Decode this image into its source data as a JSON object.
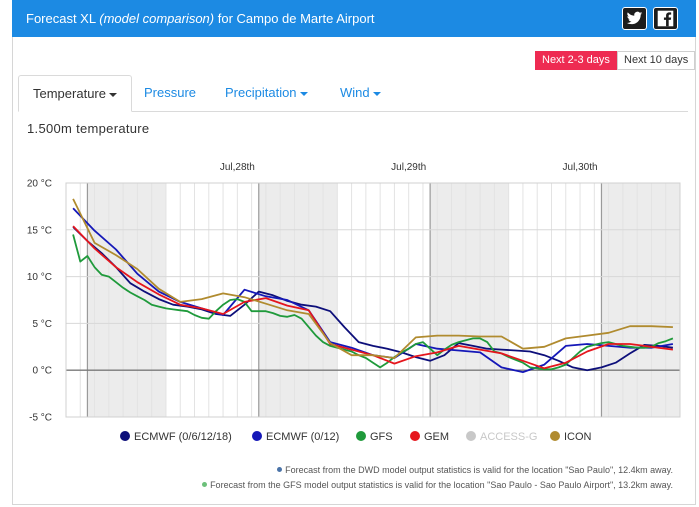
{
  "header": {
    "title_prefix": "Forecast XL",
    "title_em": "(model comparison)",
    "title_suffix": "for Campo de Marte Airport",
    "bg": "#1c8ae3"
  },
  "social": {
    "twitter_icon": "twitter-icon",
    "facebook_icon": "facebook-icon"
  },
  "range": {
    "short_label": "Next 2-3 days",
    "long_label": "Next 10 days"
  },
  "tabs": [
    {
      "label": "Temperature",
      "active": true
    },
    {
      "label": "Pressure",
      "active": false
    },
    {
      "label": "Precipitation",
      "active": false
    },
    {
      "label": "Wind",
      "active": false
    }
  ],
  "subtitle": "1.500m temperature",
  "chart_data": {
    "type": "line",
    "x_unit": "hour",
    "day_labels": [
      {
        "label": "Jul,28th",
        "hour": 24
      },
      {
        "label": "Jul,29th",
        "hour": 48
      },
      {
        "label": "Jul,30th",
        "hour": 72
      }
    ],
    "y_ticks": [
      "20 °C",
      "15 °C",
      "10 °C",
      "5 °C",
      "0 °C",
      "-5 °C"
    ],
    "y_tick_values": [
      20,
      15,
      10,
      5,
      0,
      -5
    ],
    "ylim": [
      -5,
      20
    ],
    "xlim": [
      0,
      86
    ],
    "zero_line": true,
    "grid": true,
    "series": [
      {
        "name": "ECMWF (0/6/12/18)",
        "color": "#0d0f7a",
        "x": [
          1,
          3,
          5,
          7,
          9,
          11,
          13,
          15,
          17,
          19,
          21,
          23,
          25,
          27,
          29,
          31,
          33,
          35,
          37,
          39,
          41,
          43,
          45,
          47,
          49,
          51,
          53,
          55,
          57,
          59,
          61,
          63,
          65,
          67,
          69,
          71,
          73,
          75,
          77,
          79,
          81,
          83,
          85
        ],
        "y": [
          15.3,
          13.8,
          12.5,
          11.0,
          9.3,
          8.4,
          7.6,
          7.0,
          6.8,
          6.5,
          6.0,
          5.8,
          7.0,
          8.4,
          8.0,
          7.4,
          7.0,
          6.8,
          6.3,
          4.6,
          3.0,
          2.6,
          2.3,
          1.9,
          1.4,
          1.0,
          1.6,
          2.9,
          2.6,
          2.3,
          2.2,
          2.1,
          2.0,
          1.6,
          1.0,
          0.3,
          0.0,
          0.3,
          0.8,
          1.8,
          2.7,
          2.6,
          2.4
        ]
      },
      {
        "name": "ECMWF (0/12)",
        "color": "#1518b8",
        "x": [
          1,
          4,
          7,
          10,
          13,
          16,
          19,
          22,
          25,
          28,
          31,
          34,
          37,
          40,
          43,
          46,
          49,
          52,
          55,
          58,
          61,
          64,
          67,
          70,
          73,
          76,
          79,
          82,
          85
        ],
        "y": [
          17.3,
          14.9,
          12.9,
          10.3,
          8.4,
          7.3,
          6.6,
          5.9,
          8.6,
          7.9,
          7.5,
          6.4,
          3.0,
          2.4,
          1.6,
          1.3,
          2.8,
          2.3,
          2.1,
          1.9,
          0.3,
          -0.2,
          0.6,
          2.6,
          2.8,
          2.6,
          2.4,
          2.4,
          2.8
        ]
      },
      {
        "name": "GFS",
        "color": "#1f9a3b",
        "x": [
          1,
          2,
          3,
          4,
          5,
          6,
          7,
          8,
          9,
          10,
          11,
          12,
          13,
          14,
          15,
          16,
          17,
          18,
          19,
          20,
          21,
          22,
          23,
          24,
          25,
          26,
          27,
          28,
          29,
          30,
          31,
          32,
          33,
          34,
          35,
          36,
          37,
          38,
          39,
          40,
          41,
          42,
          43,
          44,
          45,
          46,
          47,
          48,
          49,
          50,
          51,
          52,
          53,
          54,
          55,
          56,
          57,
          58,
          59,
          60,
          61,
          62,
          63,
          64,
          65,
          66,
          67,
          68,
          69,
          70,
          71,
          72,
          73,
          74,
          75,
          76,
          77,
          78,
          79,
          80,
          81,
          82,
          83,
          84,
          85
        ],
        "y": [
          14.5,
          11.6,
          12.2,
          11.0,
          10.2,
          10.0,
          9.4,
          8.8,
          8.3,
          7.9,
          7.5,
          7.0,
          6.8,
          6.6,
          6.5,
          6.4,
          6.3,
          5.9,
          5.6,
          5.5,
          6.3,
          7.0,
          7.5,
          7.6,
          7.3,
          6.3,
          6.3,
          6.3,
          6.1,
          5.8,
          5.7,
          5.9,
          5.5,
          4.6,
          3.7,
          3.0,
          2.6,
          2.4,
          2.2,
          2.0,
          1.6,
          1.3,
          0.8,
          0.3,
          0.8,
          1.4,
          1.9,
          2.3,
          2.8,
          3.0,
          2.3,
          1.6,
          2.2,
          2.7,
          3.0,
          3.2,
          3.4,
          3.4,
          3.0,
          2.0,
          1.8,
          1.4,
          1.1,
          0.8,
          0.3,
          0.2,
          0.1,
          0.1,
          0.3,
          0.6,
          1.3,
          2.0,
          2.5,
          2.7,
          2.9,
          3.0,
          2.8,
          2.6,
          2.5,
          2.4,
          2.4,
          2.5,
          2.9,
          3.1,
          3.4
        ]
      },
      {
        "name": "GEM",
        "color": "#e5161d",
        "x": [
          1,
          4,
          7,
          10,
          13,
          16,
          19,
          22,
          25,
          28,
          31,
          34,
          37,
          40,
          43,
          46,
          49,
          52,
          55,
          58,
          61,
          64,
          67,
          70,
          73,
          76,
          79,
          82,
          85
        ],
        "y": [
          15.4,
          13.0,
          11.0,
          9.4,
          8.1,
          7.0,
          6.6,
          6.0,
          7.3,
          7.7,
          6.9,
          6.4,
          2.8,
          2.2,
          1.6,
          0.7,
          1.5,
          1.9,
          2.6,
          2.2,
          1.8,
          1.0,
          0.2,
          0.8,
          2.0,
          2.8,
          2.8,
          2.5,
          2.2
        ]
      },
      {
        "name": "ACCESS-G",
        "color": "#c8c8c8",
        "x": [],
        "y": []
      },
      {
        "name": "ICON",
        "color": "#b08b2f",
        "x": [
          1,
          4,
          7,
          10,
          13,
          16,
          19,
          22,
          25,
          28,
          31,
          34,
          37,
          40,
          43,
          46,
          49,
          52,
          55,
          58,
          61,
          64,
          67,
          70,
          73,
          76,
          79,
          82,
          85
        ],
        "y": [
          18.3,
          13.6,
          12.3,
          10.8,
          8.7,
          7.3,
          7.6,
          8.2,
          7.8,
          7.1,
          6.4,
          6.0,
          2.9,
          1.6,
          1.6,
          1.3,
          3.5,
          3.7,
          3.7,
          3.6,
          3.6,
          2.3,
          2.5,
          3.4,
          3.7,
          4.0,
          4.7,
          4.7,
          4.6
        ]
      }
    ]
  },
  "credits": [
    {
      "text": "Forecast from the DWD model output statistics is valid for the location \"Sao Paulo\", 12.4km away.",
      "dot_color": "#4a73a8"
    },
    {
      "text": "Forecast from the GFS model output statistics is valid for the location \"Sao Paulo - Sao Paulo Airport\", 13.2km away.",
      "dot_color": "#6cc07a"
    }
  ]
}
